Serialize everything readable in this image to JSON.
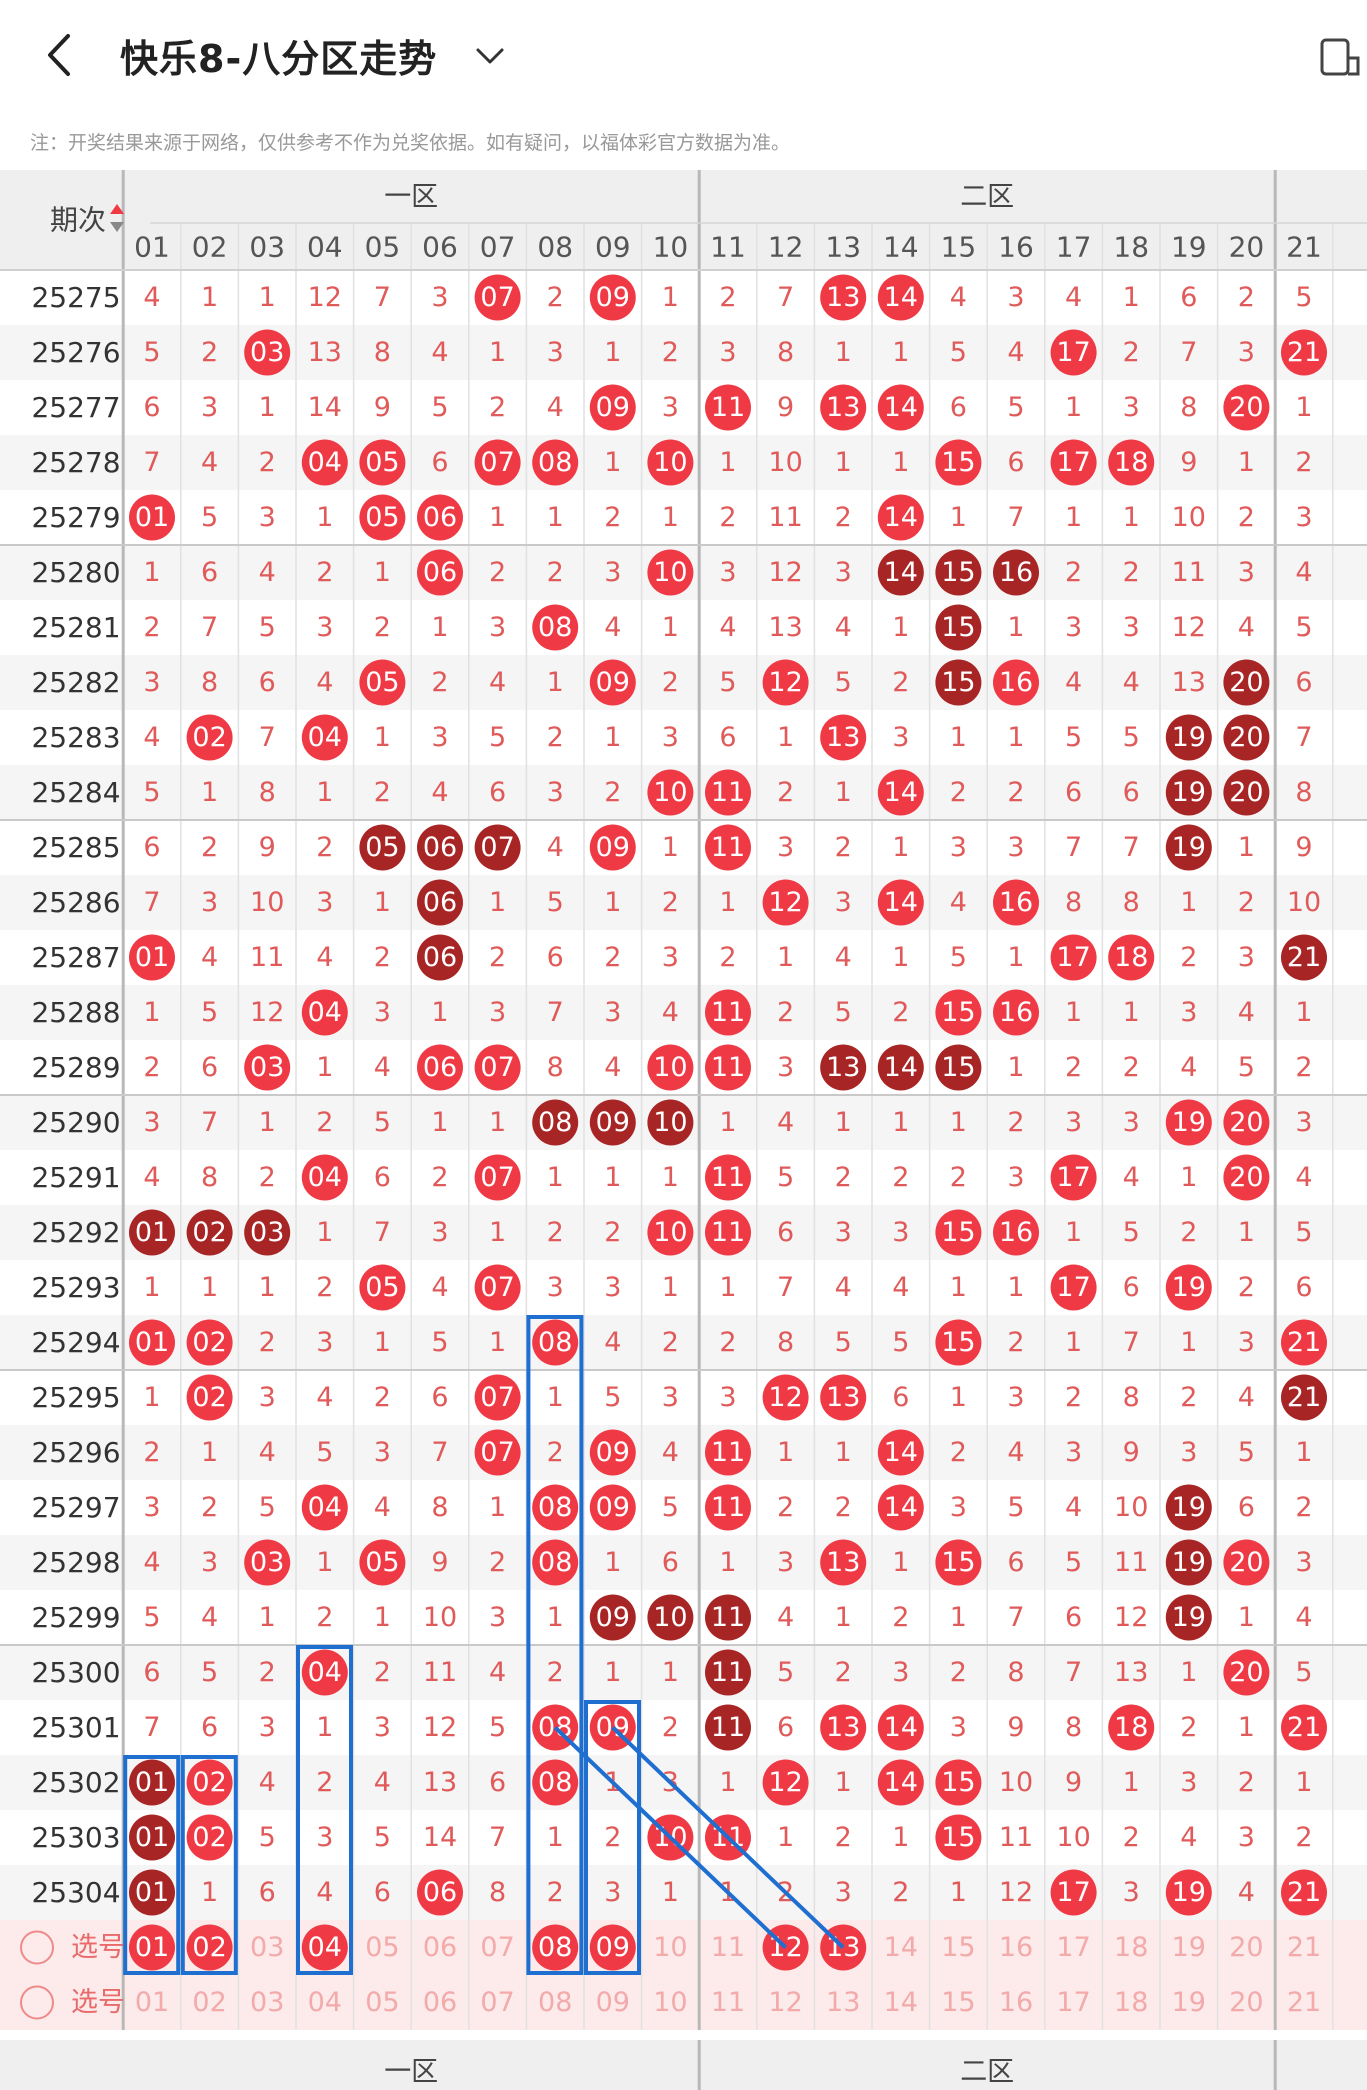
{
  "header": {
    "title": "快乐8-八分区走势"
  },
  "note": "注：开奖结果来源于网络，仅供参考不作为兑奖依据。如有疑问，以福体彩官方数据为准。",
  "table": {
    "period_label": "期次",
    "zone1_label": "一区",
    "zone2_label": "二区",
    "numbers": [
      "01",
      "02",
      "03",
      "04",
      "05",
      "06",
      "07",
      "08",
      "09",
      "10",
      "11",
      "12",
      "13",
      "14",
      "15",
      "16",
      "17",
      "18",
      "19",
      "20",
      "21"
    ],
    "rows": [
      {
        "period": "25275",
        "cells": [
          "4",
          "1",
          "1",
          "12",
          "7",
          "3",
          "*07",
          "2",
          "*09",
          "1",
          "2",
          "7",
          "*13",
          "*14",
          "4",
          "3",
          "4",
          "1",
          "6",
          "2",
          "5"
        ]
      },
      {
        "period": "25276",
        "cells": [
          "5",
          "2",
          "*03",
          "13",
          "8",
          "4",
          "1",
          "3",
          "1",
          "2",
          "3",
          "8",
          "1",
          "1",
          "5",
          "4",
          "*17",
          "2",
          "7",
          "3",
          "*21"
        ]
      },
      {
        "period": "25277",
        "cells": [
          "6",
          "3",
          "1",
          "14",
          "9",
          "5",
          "2",
          "4",
          "*09",
          "3",
          "*11",
          "9",
          "*13",
          "*14",
          "6",
          "5",
          "1",
          "3",
          "8",
          "*20",
          "1"
        ]
      },
      {
        "period": "25278",
        "cells": [
          "7",
          "4",
          "2",
          "*04",
          "*05",
          "6",
          "*07",
          "*08",
          "1",
          "*10",
          "1",
          "10",
          "1",
          "1",
          "*15",
          "6",
          "*17",
          "*18",
          "9",
          "1",
          "2"
        ]
      },
      {
        "period": "25279",
        "cells": [
          "*01",
          "5",
          "3",
          "1",
          "*05",
          "*06",
          "1",
          "1",
          "2",
          "1",
          "2",
          "11",
          "2",
          "*14",
          "1",
          "7",
          "1",
          "1",
          "10",
          "2",
          "3"
        ]
      },
      {
        "period": "25280",
        "cells": [
          "1",
          "6",
          "4",
          "2",
          "1",
          "*06",
          "2",
          "2",
          "3",
          "*10",
          "3",
          "12",
          "3",
          "#14",
          "#15",
          "#16",
          "2",
          "2",
          "11",
          "3",
          "4"
        ]
      },
      {
        "period": "25281",
        "cells": [
          "2",
          "7",
          "5",
          "3",
          "2",
          "1",
          "3",
          "*08",
          "4",
          "1",
          "4",
          "13",
          "4",
          "1",
          "#15",
          "1",
          "3",
          "3",
          "12",
          "4",
          "5"
        ]
      },
      {
        "period": "25282",
        "cells": [
          "3",
          "8",
          "6",
          "4",
          "*05",
          "2",
          "4",
          "1",
          "*09",
          "2",
          "5",
          "*12",
          "5",
          "2",
          "#15",
          "*16",
          "4",
          "4",
          "13",
          "#20",
          "6"
        ]
      },
      {
        "period": "25283",
        "cells": [
          "4",
          "*02",
          "7",
          "*04",
          "1",
          "3",
          "5",
          "2",
          "1",
          "3",
          "6",
          "1",
          "*13",
          "3",
          "1",
          "1",
          "5",
          "5",
          "#19",
          "#20",
          "7"
        ]
      },
      {
        "period": "25284",
        "cells": [
          "5",
          "1",
          "8",
          "1",
          "2",
          "4",
          "6",
          "3",
          "2",
          "*10",
          "*11",
          "2",
          "1",
          "*14",
          "2",
          "2",
          "6",
          "6",
          "#19",
          "#20",
          "8"
        ]
      },
      {
        "period": "25285",
        "cells": [
          "6",
          "2",
          "9",
          "2",
          "#05",
          "#06",
          "#07",
          "4",
          "*09",
          "1",
          "*11",
          "3",
          "2",
          "1",
          "3",
          "3",
          "7",
          "7",
          "#19",
          "1",
          "9"
        ]
      },
      {
        "period": "25286",
        "cells": [
          "7",
          "3",
          "10",
          "3",
          "1",
          "#06",
          "1",
          "5",
          "1",
          "2",
          "1",
          "*12",
          "3",
          "*14",
          "4",
          "*16",
          "8",
          "8",
          "1",
          "2",
          "10"
        ]
      },
      {
        "period": "25287",
        "cells": [
          "*01",
          "4",
          "11",
          "4",
          "2",
          "#06",
          "2",
          "6",
          "2",
          "3",
          "2",
          "1",
          "4",
          "1",
          "5",
          "1",
          "*17",
          "*18",
          "2",
          "3",
          "#21"
        ]
      },
      {
        "period": "25288",
        "cells": [
          "1",
          "5",
          "12",
          "*04",
          "3",
          "1",
          "3",
          "7",
          "3",
          "4",
          "*11",
          "2",
          "5",
          "2",
          "*15",
          "*16",
          "1",
          "1",
          "3",
          "4",
          "1"
        ]
      },
      {
        "period": "25289",
        "cells": [
          "2",
          "6",
          "*03",
          "1",
          "4",
          "*06",
          "*07",
          "8",
          "4",
          "*10",
          "*11",
          "3",
          "#13",
          "#14",
          "#15",
          "1",
          "2",
          "2",
          "4",
          "5",
          "2"
        ]
      },
      {
        "period": "25290",
        "cells": [
          "3",
          "7",
          "1",
          "2",
          "5",
          "1",
          "1",
          "#08",
          "#09",
          "#10",
          "1",
          "4",
          "1",
          "1",
          "1",
          "2",
          "3",
          "3",
          "*19",
          "*20",
          "3"
        ]
      },
      {
        "period": "25291",
        "cells": [
          "4",
          "8",
          "2",
          "*04",
          "6",
          "2",
          "*07",
          "1",
          "1",
          "1",
          "*11",
          "5",
          "2",
          "2",
          "2",
          "3",
          "*17",
          "4",
          "1",
          "*20",
          "4"
        ]
      },
      {
        "period": "25292",
        "cells": [
          "#01",
          "#02",
          "#03",
          "1",
          "7",
          "3",
          "1",
          "2",
          "2",
          "*10",
          "*11",
          "6",
          "3",
          "3",
          "*15",
          "*16",
          "1",
          "5",
          "2",
          "1",
          "5"
        ]
      },
      {
        "period": "25293",
        "cells": [
          "1",
          "1",
          "1",
          "2",
          "*05",
          "4",
          "*07",
          "3",
          "3",
          "1",
          "1",
          "7",
          "4",
          "4",
          "1",
          "1",
          "*17",
          "6",
          "*19",
          "2",
          "6"
        ]
      },
      {
        "period": "25294",
        "cells": [
          "*01",
          "*02",
          "2",
          "3",
          "1",
          "5",
          "1",
          "*08",
          "4",
          "2",
          "2",
          "8",
          "5",
          "5",
          "*15",
          "2",
          "1",
          "7",
          "1",
          "3",
          "*21"
        ]
      },
      {
        "period": "25295",
        "cells": [
          "1",
          "*02",
          "3",
          "4",
          "2",
          "6",
          "*07",
          "1",
          "5",
          "3",
          "3",
          "*12",
          "*13",
          "6",
          "1",
          "3",
          "2",
          "8",
          "2",
          "4",
          "#21"
        ]
      },
      {
        "period": "25296",
        "cells": [
          "2",
          "1",
          "4",
          "5",
          "3",
          "7",
          "*07",
          "2",
          "*09",
          "4",
          "*11",
          "1",
          "1",
          "*14",
          "2",
          "4",
          "3",
          "9",
          "3",
          "5",
          "1"
        ]
      },
      {
        "period": "25297",
        "cells": [
          "3",
          "2",
          "5",
          "*04",
          "4",
          "8",
          "1",
          "*08",
          "*09",
          "5",
          "*11",
          "2",
          "2",
          "*14",
          "3",
          "5",
          "4",
          "10",
          "#19",
          "6",
          "2"
        ]
      },
      {
        "period": "25298",
        "cells": [
          "4",
          "3",
          "*03",
          "1",
          "*05",
          "9",
          "2",
          "*08",
          "1",
          "6",
          "1",
          "3",
          "*13",
          "1",
          "*15",
          "6",
          "5",
          "11",
          "#19",
          "*20",
          "3"
        ]
      },
      {
        "period": "25299",
        "cells": [
          "5",
          "4",
          "1",
          "2",
          "1",
          "10",
          "3",
          "1",
          "#09",
          "#10",
          "#11",
          "4",
          "1",
          "2",
          "1",
          "7",
          "6",
          "12",
          "#19",
          "1",
          "4"
        ]
      },
      {
        "period": "25300",
        "cells": [
          "6",
          "5",
          "2",
          "*04",
          "2",
          "11",
          "4",
          "2",
          "1",
          "1",
          "#11",
          "5",
          "2",
          "3",
          "2",
          "8",
          "7",
          "13",
          "1",
          "*20",
          "5"
        ]
      },
      {
        "period": "25301",
        "cells": [
          "7",
          "6",
          "3",
          "1",
          "3",
          "12",
          "5",
          "*08",
          "*09",
          "2",
          "#11",
          "6",
          "*13",
          "*14",
          "3",
          "9",
          "8",
          "*18",
          "2",
          "1",
          "*21"
        ]
      },
      {
        "period": "25302",
        "cells": [
          "#01",
          "*02",
          "4",
          "2",
          "4",
          "13",
          "6",
          "*08",
          "1",
          "3",
          "1",
          "*12",
          "1",
          "*14",
          "*15",
          "10",
          "9",
          "1",
          "3",
          "2",
          "1"
        ]
      },
      {
        "period": "25303",
        "cells": [
          "#01",
          "*02",
          "5",
          "3",
          "5",
          "14",
          "7",
          "1",
          "2",
          "*10",
          "*11",
          "1",
          "2",
          "1",
          "*15",
          "11",
          "10",
          "2",
          "4",
          "3",
          "2"
        ]
      },
      {
        "period": "25304",
        "cells": [
          "#01",
          "1",
          "6",
          "4",
          "6",
          "*06",
          "8",
          "2",
          "3",
          "1",
          "1",
          "2",
          "3",
          "2",
          "1",
          "12",
          "*17",
          "3",
          "*19",
          "4",
          "*21"
        ]
      }
    ],
    "select_rows": [
      {
        "label": "选号",
        "cells": [
          "*01",
          "*02",
          "03",
          "*04",
          "05",
          "06",
          "07",
          "*08",
          "*09",
          "10",
          "11",
          "*12",
          "*13",
          "14",
          "15",
          "16",
          "17",
          "18",
          "19",
          "20",
          "21"
        ]
      },
      {
        "label": "选号",
        "cells": [
          "01",
          "02",
          "03",
          "04",
          "05",
          "06",
          "07",
          "08",
          "09",
          "10",
          "11",
          "12",
          "13",
          "14",
          "15",
          "16",
          "17",
          "18",
          "19",
          "20",
          "21"
        ]
      }
    ]
  },
  "colors": {
    "hit": "#ef3a45",
    "repeat": "#a82525",
    "miss_text": "#e05a5a",
    "header_bg": "#efefef",
    "alt_row": "#f5f5f5",
    "select_bg": "#fdeaea",
    "annotation": "#1f6fd0"
  }
}
